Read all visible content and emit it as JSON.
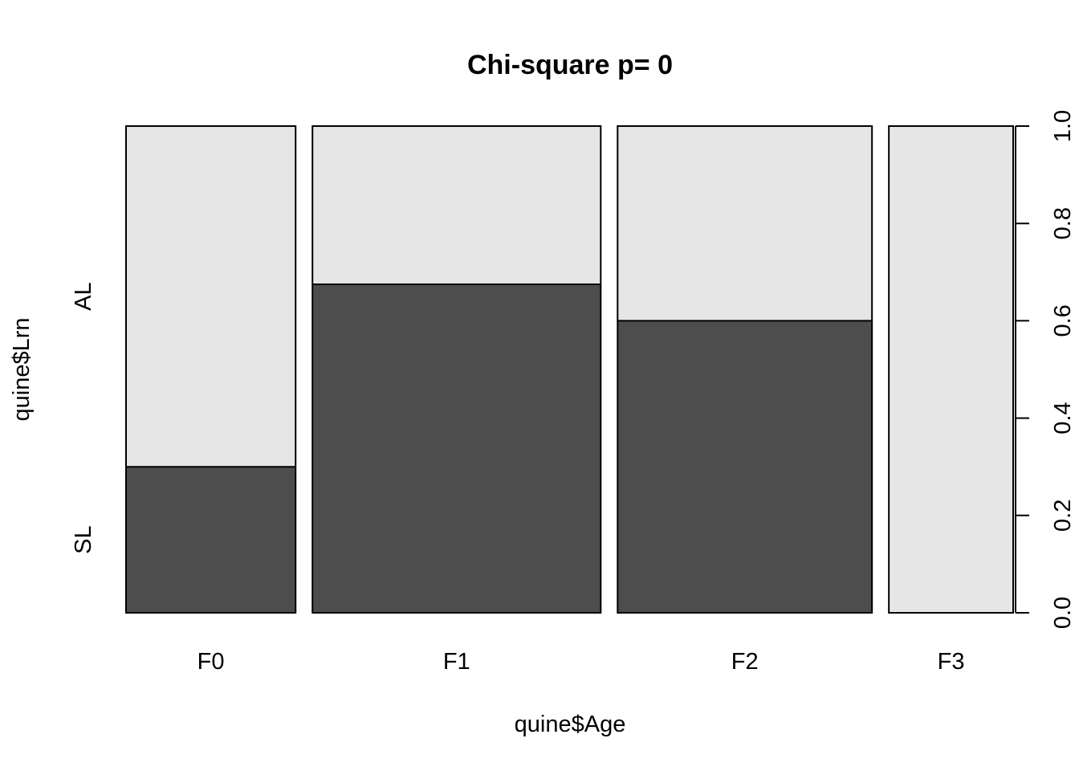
{
  "chart_data": {
    "type": "spineplot",
    "title": "Chi-square p= 0",
    "xlabel": "quine$Age",
    "ylabel": "quine$Lrn",
    "categories": [
      "F0",
      "F1",
      "F2",
      "F3"
    ],
    "category_proportions": [
      0.2027,
      0.3446,
      0.3041,
      0.1486
    ],
    "series": [
      {
        "name": "SL",
        "values": [
          0.3,
          0.675,
          0.6,
          0.0
        ]
      },
      {
        "name": "AL",
        "values": [
          0.7,
          0.325,
          0.4,
          1.0
        ]
      }
    ],
    "ylim": [
      0,
      1
    ],
    "yticks": [
      "0.0",
      "0.2",
      "0.4",
      "0.6",
      "0.8",
      "1.0"
    ],
    "colors": {
      "SL": "#4d4d4d",
      "AL": "#e6e6e6",
      "border": "#000000"
    },
    "grid": false,
    "legend": "none"
  }
}
